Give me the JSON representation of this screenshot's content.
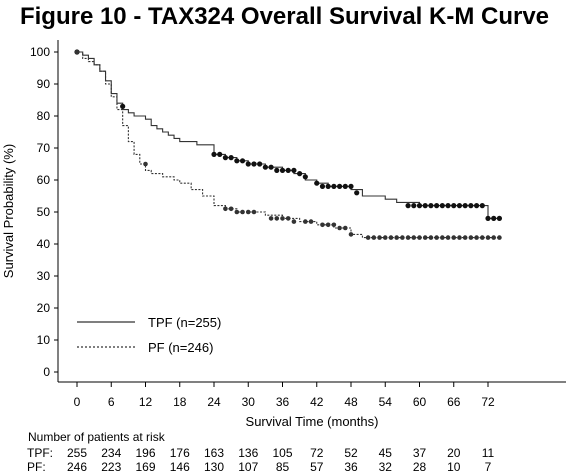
{
  "chart_data": {
    "type": "line",
    "title": "Figure 10 - TAX324 Overall Survival K-M Curve",
    "xlabel": "Survival Time (months)",
    "ylabel": "Survival Probability (%)",
    "xlim": [
      -3,
      75
    ],
    "ylim": [
      0,
      100
    ],
    "xticks": [
      0,
      6,
      12,
      18,
      24,
      30,
      36,
      42,
      48,
      54,
      60,
      66,
      72
    ],
    "yticks": [
      0,
      10,
      20,
      30,
      40,
      50,
      60,
      70,
      80,
      90,
      100
    ],
    "legend_position": "bottom-left",
    "series": [
      {
        "name": "TPF (n=255)",
        "style": "solid",
        "color": "#000000",
        "x": [
          0,
          1,
          2,
          3,
          4,
          5,
          6,
          7,
          8,
          9,
          10,
          11,
          12,
          13,
          14,
          15,
          16,
          17,
          18,
          21,
          24,
          26,
          28,
          30,
          33,
          36,
          38,
          40,
          42,
          44,
          46,
          48,
          50,
          54,
          56,
          58,
          60,
          62,
          64,
          66,
          68,
          70,
          71,
          72,
          74
        ],
        "y": [
          100,
          99,
          98,
          96,
          94,
          91,
          87,
          84,
          82,
          81,
          80,
          80,
          79,
          77,
          76,
          75,
          74,
          73,
          72,
          71,
          68,
          67,
          66,
          65,
          64,
          63,
          62,
          60,
          59,
          58,
          58,
          57,
          55,
          54,
          53,
          53,
          52,
          52,
          52,
          52,
          52,
          52,
          52,
          48,
          48
        ],
        "censored_x": [
          0,
          8,
          24,
          25,
          26,
          27,
          28,
          29,
          30,
          31,
          32,
          33,
          34,
          35,
          36,
          37,
          38,
          39,
          40,
          42,
          43,
          44,
          45,
          46,
          47,
          48,
          49,
          58,
          59,
          60,
          61,
          62,
          63,
          64,
          65,
          66,
          67,
          68,
          69,
          70,
          71,
          72,
          73,
          74
        ],
        "censored_y": [
          100,
          83,
          68,
          68,
          67,
          67,
          66,
          66,
          65,
          65,
          65,
          64,
          64,
          63,
          63,
          63,
          63,
          62,
          61,
          59,
          58,
          58,
          58,
          58,
          58,
          58,
          56,
          52,
          52,
          52,
          52,
          52,
          52,
          52,
          52,
          52,
          52,
          52,
          52,
          52,
          52,
          48,
          48,
          48
        ]
      },
      {
        "name": "PF (n=246)",
        "style": "dashed",
        "color": "#000000",
        "x": [
          0,
          1,
          2,
          3,
          4,
          5,
          6,
          7,
          8,
          9,
          10,
          11,
          12,
          13,
          14,
          15,
          16,
          17,
          18,
          20,
          22,
          24,
          26,
          28,
          30,
          33,
          36,
          39,
          42,
          45,
          48,
          50,
          54,
          60,
          66,
          72,
          74
        ],
        "y": [
          100,
          98,
          97,
          96,
          94,
          90,
          86,
          82,
          77,
          72,
          68,
          65,
          63,
          62,
          62,
          61,
          61,
          60,
          59,
          57,
          55,
          52,
          51,
          50,
          50,
          49,
          48,
          47,
          46,
          45,
          43,
          42,
          42,
          42,
          42,
          42,
          42
        ],
        "censored_x": [
          0,
          12,
          26,
          27,
          28,
          29,
          30,
          31,
          34,
          35,
          36,
          37,
          38,
          40,
          41,
          43,
          44,
          45,
          46,
          47,
          48,
          51,
          52,
          53,
          54,
          55,
          56,
          57,
          58,
          59,
          60,
          61,
          62,
          63,
          64,
          65,
          66,
          67,
          68,
          69,
          70,
          71,
          72,
          73,
          74
        ],
        "censored_y": [
          100,
          65,
          51,
          51,
          50,
          50,
          50,
          50,
          48,
          48,
          48,
          48,
          47,
          47,
          47,
          46,
          46,
          46,
          45,
          45,
          43,
          42,
          42,
          42,
          42,
          42,
          42,
          42,
          42,
          42,
          42,
          42,
          42,
          42,
          42,
          42,
          42,
          42,
          42,
          42,
          42,
          42,
          42,
          42,
          42
        ]
      }
    ],
    "risk_table": {
      "heading": "Number of patients at risk",
      "rows": [
        {
          "label": "TPF:",
          "values": [
            "255",
            "234",
            "196",
            "176",
            "163",
            "136",
            "105",
            "72",
            "52",
            "45",
            "37",
            "20",
            "11"
          ]
        },
        {
          "label": "PF:",
          "values": [
            "246",
            "223",
            "169",
            "146",
            "130",
            "107",
            "85",
            "57",
            "36",
            "32",
            "28",
            "10",
            "7"
          ]
        }
      ]
    }
  }
}
